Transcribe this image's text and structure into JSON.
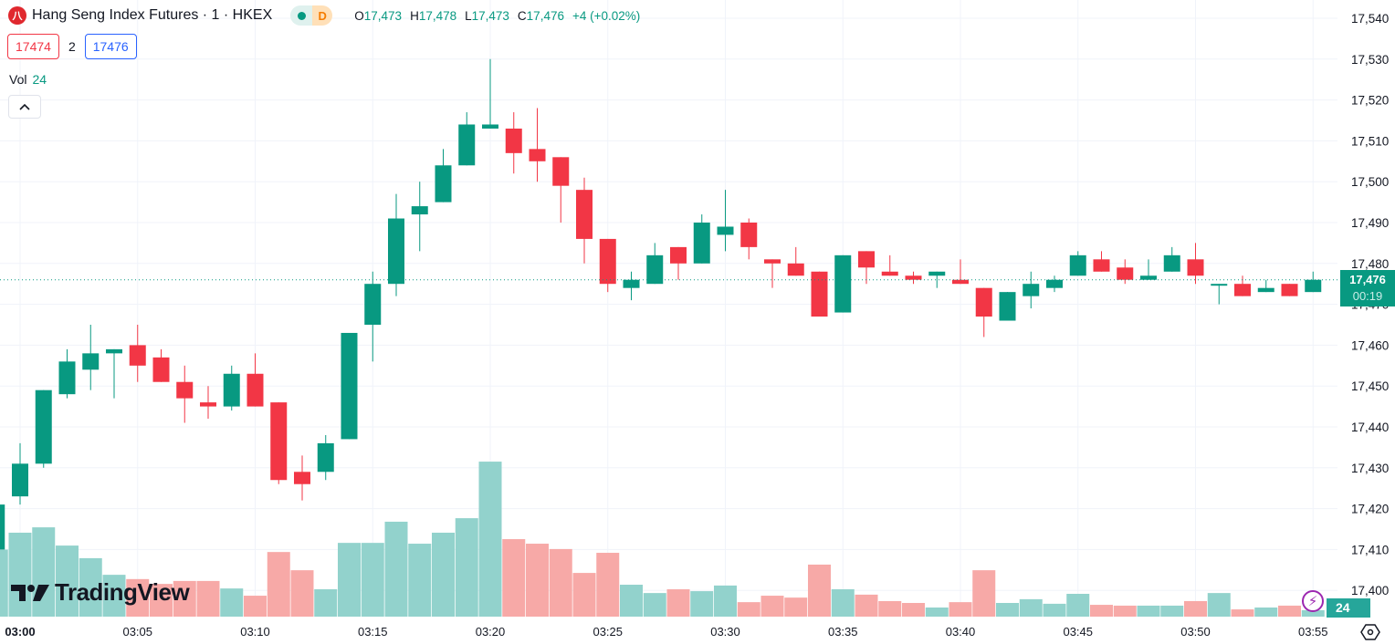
{
  "header": {
    "title": "Hang Seng Index Futures · 1 · HKEX",
    "logo_text": "八",
    "market_status": "D",
    "ohlc": {
      "o_label": "O",
      "o": "17,473",
      "h_label": "H",
      "h": "17,478",
      "l_label": "L",
      "l": "17,473",
      "c_label": "C",
      "c": "17,476",
      "change": "+4 (+0.02%)"
    }
  },
  "trade": {
    "sell": "17474",
    "spread": "2",
    "buy": "17476"
  },
  "volume_legend": {
    "label": "Vol",
    "value": "24"
  },
  "watermark": "TradingView",
  "last_price": {
    "price": "17,476",
    "countdown": "00:19"
  },
  "last_volume": "24",
  "colors": {
    "up": "#089981",
    "down": "#f23645",
    "vol_up": "#92d2cc",
    "vol_down": "#f7a9a7",
    "grid": "#f0f3fa"
  },
  "chart_data": {
    "type": "candlestick",
    "title": "Hang Seng Index Futures · 1 · HKEX",
    "x_tick_labels": [
      "03:00",
      "03:05",
      "03:10",
      "03:15",
      "03:20",
      "03:25",
      "03:30",
      "03:35",
      "03:40",
      "03:45",
      "03:50",
      "03:55"
    ],
    "y_ticks": [
      17540,
      17530,
      17520,
      17510,
      17500,
      17490,
      17480,
      17470,
      17460,
      17450,
      17440,
      17430,
      17420,
      17410,
      17400
    ],
    "ylim": [
      17394,
      17544
    ],
    "start_time": "02:59",
    "interval_minutes": 1,
    "candles": [
      [
        17410,
        17421,
        17410,
        17421,
        250
      ],
      [
        17423,
        17436,
        17421,
        17431,
        313
      ],
      [
        17431,
        17449,
        17430,
        17449,
        333
      ],
      [
        17448,
        17459,
        17447,
        17456,
        265
      ],
      [
        17454,
        17465,
        17449,
        17458,
        218
      ],
      [
        17458,
        17459,
        17447,
        17459,
        156
      ],
      [
        17460,
        17465,
        17451,
        17455,
        140
      ],
      [
        17457,
        17459,
        17451,
        17451,
        122
      ],
      [
        17451,
        17455,
        17441,
        17447,
        133
      ],
      [
        17446,
        17450,
        17442,
        17445,
        133
      ],
      [
        17445,
        17455,
        17444,
        17453,
        105
      ],
      [
        17453,
        17458,
        17445,
        17445,
        78
      ],
      [
        17446,
        17446,
        17426,
        17427,
        241
      ],
      [
        17429,
        17433,
        17422,
        17426,
        173
      ],
      [
        17429,
        17438,
        17427,
        17436,
        102
      ],
      [
        17437,
        17463,
        17437,
        17463,
        275
      ],
      [
        17465,
        17478,
        17456,
        17475,
        275
      ],
      [
        17475,
        17497,
        17472,
        17491,
        354
      ],
      [
        17492,
        17500,
        17483,
        17494,
        272
      ],
      [
        17495,
        17508,
        17495,
        17504,
        313
      ],
      [
        17504,
        17517,
        17504,
        17514,
        367
      ],
      [
        17513,
        17530,
        17513,
        17514,
        578
      ],
      [
        17513,
        17517,
        17502,
        17507,
        289
      ],
      [
        17508,
        17518,
        17500,
        17505,
        272
      ],
      [
        17506,
        17506,
        17490,
        17499,
        252
      ],
      [
        17498,
        17501,
        17480,
        17486,
        163
      ],
      [
        17486,
        17486,
        17473,
        17475,
        238
      ],
      [
        17474,
        17478,
        17471,
        17476,
        119
      ],
      [
        17475,
        17485,
        17475,
        17482,
        88
      ],
      [
        17484,
        17484,
        17476,
        17480,
        102
      ],
      [
        17480,
        17492,
        17480,
        17490,
        95
      ],
      [
        17487,
        17498,
        17483,
        17489,
        116
      ],
      [
        17490,
        17491,
        17481,
        17484,
        54
      ],
      [
        17481,
        17481,
        17474,
        17480,
        78
      ],
      [
        17480,
        17484,
        17477,
        17477,
        71
      ],
      [
        17478,
        17478,
        17467,
        17467,
        194
      ],
      [
        17468,
        17482,
        17468,
        17482,
        102
      ],
      [
        17483,
        17483,
        17475,
        17479,
        82
      ],
      [
        17478,
        17482,
        17477,
        17477,
        58
      ],
      [
        17477,
        17478,
        17475,
        17476,
        51
      ],
      [
        17477,
        17478,
        17474,
        17478,
        34
      ],
      [
        17476,
        17481,
        17475,
        17475,
        54
      ],
      [
        17474,
        17474,
        17462,
        17467,
        173
      ],
      [
        17466,
        17473,
        17466,
        17473,
        51
      ],
      [
        17472,
        17478,
        17469,
        17475,
        65
      ],
      [
        17474,
        17477,
        17473,
        17476,
        48
      ],
      [
        17477,
        17483,
        17477,
        17482,
        85
      ],
      [
        17481,
        17483,
        17478,
        17478,
        44
      ],
      [
        17479,
        17481,
        17475,
        17476,
        41
      ],
      [
        17476,
        17481,
        17476,
        17477,
        41
      ],
      [
        17478,
        17484,
        17478,
        17482,
        41
      ],
      [
        17481,
        17485,
        17475,
        17477,
        58
      ],
      [
        17475,
        17475,
        17470,
        17475,
        88
      ],
      [
        17475,
        17477,
        17472,
        17472,
        27
      ],
      [
        17473,
        17476,
        17473,
        17474,
        34
      ],
      [
        17475,
        17475,
        17472,
        17472,
        41
      ],
      [
        17473,
        17478,
        17473,
        17476,
        24
      ]
    ],
    "candle_fields": [
      "open",
      "high",
      "low",
      "close",
      "volume"
    ],
    "last_price_line": 17476,
    "grid": true
  }
}
